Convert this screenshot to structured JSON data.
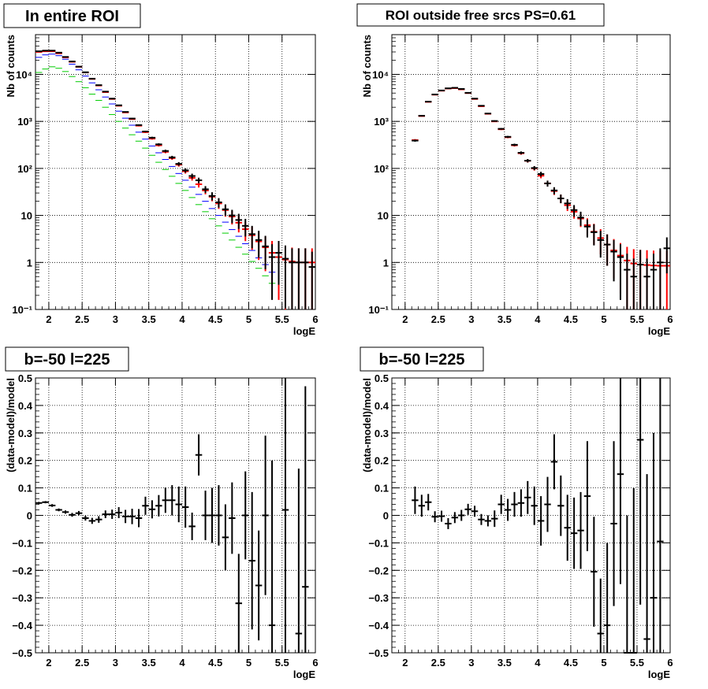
{
  "colors": {
    "data": "#000000",
    "total_model": "#ff0000",
    "model_blue": "#0000ff",
    "model_green": "#00cc00"
  },
  "chart_data": [
    {
      "type": "scatter",
      "title": "In entire ROI",
      "xlabel": "logE",
      "ylabel": "Nb of counts",
      "xlim": [
        1.8,
        6.0
      ],
      "ylim": [
        0.1,
        70000
      ],
      "yscale": "log",
      "grid": true,
      "x_ticks": [
        "2",
        "2.5",
        "3",
        "3.5",
        "4",
        "4.5",
        "5",
        "5.5",
        "6"
      ],
      "y_ticks": [
        "10⁻¹",
        "1",
        "10",
        "10²",
        "10³",
        "10⁴"
      ],
      "series": [
        {
          "color": "#00cc00",
          "x": [
            1.85,
            1.95,
            2.05,
            2.15,
            2.25,
            2.35,
            2.45,
            2.55,
            2.65,
            2.75,
            2.85,
            2.95,
            3.05,
            3.15,
            3.25,
            3.35,
            3.45,
            3.55,
            3.65,
            3.75,
            3.85,
            3.95,
            4.05,
            4.15,
            4.25,
            4.35,
            4.45,
            4.55,
            4.65,
            4.75,
            4.85,
            4.95,
            5.05,
            5.15,
            5.25,
            5.35
          ],
          "y": [
            11000,
            13000,
            14500,
            13500,
            11500,
            9000,
            7000,
            5200,
            3800,
            2800,
            2000,
            1400,
            1000,
            720,
            520,
            380,
            270,
            190,
            135,
            95,
            68,
            48,
            34,
            24,
            17,
            12,
            8.5,
            6,
            4.2,
            3,
            2.1,
            1.5,
            1.05,
            0.75,
            0.52,
            0.36
          ]
        },
        {
          "color": "#0000ff",
          "x": [
            1.85,
            1.95,
            2.05,
            2.15,
            2.25,
            2.35,
            2.45,
            2.55,
            2.65,
            2.75,
            2.85,
            2.95,
            3.05,
            3.15,
            3.25,
            3.35,
            3.45,
            3.55,
            3.65,
            3.75,
            3.85,
            3.95,
            4.05,
            4.15,
            4.25,
            4.35,
            4.45,
            4.55,
            4.65,
            4.75,
            4.85,
            4.95,
            5.05,
            5.15,
            5.25,
            5.35
          ],
          "y": [
            23000,
            26000,
            27000,
            25000,
            21000,
            16500,
            12500,
            9200,
            6600,
            4700,
            3300,
            2350,
            1650,
            1170,
            830,
            590,
            420,
            300,
            215,
            155,
            110,
            78,
            56,
            40,
            28,
            20,
            14,
            10,
            7.2,
            5,
            3.6,
            2.5,
            1.8,
            1.25,
            0.9,
            0.62
          ]
        },
        {
          "color": "#ff0000",
          "errors": true,
          "x": [
            1.85,
            1.95,
            2.05,
            2.15,
            2.25,
            2.35,
            2.45,
            2.55,
            2.65,
            2.75,
            2.85,
            2.95,
            3.05,
            3.15,
            3.25,
            3.35,
            3.45,
            3.55,
            3.65,
            3.75,
            3.85,
            3.95,
            4.05,
            4.15,
            4.25,
            4.35,
            4.45,
            4.55,
            4.65,
            4.75,
            4.85,
            4.95,
            5.05,
            5.15,
            5.25,
            5.35,
            5.45,
            5.55,
            5.65,
            5.75,
            5.85,
            5.95
          ],
          "y": [
            30000,
            31000,
            31000,
            28000,
            23000,
            18500,
            14500,
            11000,
            8000,
            5800,
            4200,
            3000,
            2150,
            1550,
            1120,
            810,
            590,
            430,
            310,
            225,
            165,
            120,
            87,
            63,
            46,
            34,
            25,
            18,
            13,
            9.5,
            7,
            5.1,
            3.8,
            2.8,
            2.1,
            1.6,
            1.3,
            1.15,
            1.05,
            1.0,
            1.0,
            1.0
          ]
        },
        {
          "color": "#000000",
          "errors": true,
          "x": [
            1.85,
            1.95,
            2.05,
            2.15,
            2.25,
            2.35,
            2.45,
            2.55,
            2.65,
            2.75,
            2.85,
            2.95,
            3.05,
            3.15,
            3.25,
            3.35,
            3.45,
            3.55,
            3.65,
            3.75,
            3.85,
            3.95,
            4.05,
            4.15,
            4.25,
            4.35,
            4.45,
            4.55,
            4.65,
            4.75,
            4.85,
            4.95,
            5.05,
            5.15,
            5.25,
            5.35,
            5.45,
            5.55,
            5.65,
            5.75,
            5.85,
            5.95
          ],
          "y": [
            31000,
            32000,
            32000,
            29000,
            23500,
            18800,
            14600,
            11100,
            8100,
            5900,
            4300,
            3050,
            2200,
            1590,
            1150,
            835,
            610,
            450,
            325,
            235,
            172,
            125,
            91,
            69,
            56,
            36,
            26,
            19,
            13.5,
            10,
            8,
            6,
            4,
            3,
            2.2,
            1.3,
            1.6,
            1.2,
            1.0,
            1.0,
            1.0,
            0.8
          ]
        }
      ]
    },
    {
      "type": "scatter",
      "title": "ROI outside free srcs PS=0.61",
      "xlabel": "logE",
      "ylabel": "Nb of counts",
      "xlim": [
        1.8,
        6.0
      ],
      "ylim": [
        0.1,
        70000
      ],
      "yscale": "log",
      "grid": true,
      "x_ticks": [
        "2",
        "2.5",
        "3",
        "3.5",
        "4",
        "4.5",
        "5",
        "5.5",
        "6"
      ],
      "y_ticks": [
        "10⁻¹",
        "1",
        "10",
        "10²",
        "10³",
        "10⁴"
      ],
      "series": [
        {
          "color": "#ff0000",
          "errors": true,
          "x": [
            2.15,
            2.25,
            2.35,
            2.45,
            2.55,
            2.65,
            2.75,
            2.85,
            2.95,
            3.05,
            3.15,
            3.25,
            3.35,
            3.45,
            3.55,
            3.65,
            3.75,
            3.85,
            3.95,
            4.05,
            4.15,
            4.25,
            4.35,
            4.45,
            4.55,
            4.65,
            4.75,
            4.85,
            4.95,
            5.05,
            5.15,
            5.25,
            5.35,
            5.45,
            5.55,
            5.65,
            5.75,
            5.85,
            5.95
          ],
          "y": [
            400,
            1300,
            2600,
            3700,
            4500,
            5000,
            5100,
            4800,
            4000,
            3000,
            2100,
            1450,
            1000,
            680,
            460,
            310,
            210,
            145,
            100,
            70,
            48,
            33,
            23,
            16.5,
            12,
            8.6,
            6.2,
            4.5,
            3.3,
            2.4,
            1.8,
            1.4,
            1.1,
            0.95,
            0.9,
            0.88,
            0.86,
            0.85,
            0.85
          ]
        },
        {
          "color": "#000000",
          "errors": true,
          "x": [
            2.15,
            2.25,
            2.35,
            2.45,
            2.55,
            2.65,
            2.75,
            2.85,
            2.95,
            3.05,
            3.15,
            3.25,
            3.35,
            3.45,
            3.55,
            3.65,
            3.75,
            3.85,
            3.95,
            4.05,
            4.15,
            4.25,
            4.35,
            4.45,
            4.55,
            4.65,
            4.75,
            4.85,
            4.95,
            5.05,
            5.15,
            5.25,
            5.35,
            5.45,
            5.55,
            5.65,
            5.75,
            5.85,
            5.95
          ],
          "y": [
            390,
            1320,
            2630,
            3740,
            4550,
            5050,
            5180,
            4900,
            4050,
            3050,
            2150,
            1470,
            1020,
            695,
            470,
            318,
            215,
            146,
            102,
            76,
            48,
            34,
            23,
            18,
            13,
            9,
            5.8,
            4.4,
            3,
            2.4,
            1.7,
            1.3,
            0.7,
            0.5,
            0.9,
            0.5,
            0.7,
            1.0,
            2.0
          ]
        }
      ]
    },
    {
      "type": "scatter",
      "title": "b=-50 l=225",
      "xlabel": "logE",
      "ylabel": "(data-model)/model",
      "xlim": [
        1.8,
        6.0
      ],
      "ylim": [
        -0.5,
        0.5
      ],
      "grid": true,
      "x_ticks": [
        "2",
        "2.5",
        "3",
        "3.5",
        "4",
        "4.5",
        "5",
        "5.5",
        "6"
      ],
      "y_ticks": [
        "−0.5",
        "−0.4",
        "−0.3",
        "−0.2",
        "−0.1",
        "0",
        "0.1",
        "0.2",
        "0.3",
        "0.4",
        "0.5"
      ],
      "series": [
        {
          "color": "#000000",
          "errors": true,
          "x": [
            1.85,
            1.95,
            2.05,
            2.15,
            2.25,
            2.35,
            2.45,
            2.55,
            2.65,
            2.75,
            2.85,
            2.95,
            3.05,
            3.15,
            3.25,
            3.35,
            3.45,
            3.55,
            3.65,
            3.75,
            3.85,
            3.95,
            4.05,
            4.15,
            4.25,
            4.35,
            4.45,
            4.55,
            4.65,
            4.75,
            4.85,
            4.95,
            5.05,
            5.15,
            5.25,
            5.35,
            5.55,
            5.75,
            5.85
          ],
          "y": [
            0.045,
            0.048,
            0.036,
            0.02,
            0.012,
            0.002,
            0.008,
            -0.01,
            -0.02,
            -0.015,
            0.004,
            0.004,
            0.01,
            -0.004,
            -0.004,
            -0.01,
            0.035,
            0.022,
            0.035,
            0.055,
            0.055,
            0.04,
            0.03,
            -0.04,
            0.22,
            0.0,
            0.0,
            0.0,
            -0.08,
            -0.01,
            -0.32,
            0.0,
            -0.165,
            -0.255,
            0.0,
            -0.4,
            0.02,
            -0.43,
            -0.26
          ],
          "err": [
            0.004,
            0.004,
            0.005,
            0.005,
            0.006,
            0.007,
            0.008,
            0.009,
            0.011,
            0.012,
            0.014,
            0.017,
            0.02,
            0.024,
            0.028,
            0.033,
            0.033,
            0.033,
            0.039,
            0.046,
            0.055,
            0.065,
            0.075,
            0.05,
            0.075,
            0.09,
            0.1,
            0.11,
            0.12,
            0.13,
            0.18,
            0.16,
            0.25,
            0.2,
            0.29,
            0.6,
            0.6,
            0.6,
            0.73
          ]
        }
      ]
    },
    {
      "type": "scatter",
      "title": "b=-50 l=225",
      "xlabel": "logE",
      "ylabel": "(data-model)/model",
      "xlim": [
        1.8,
        6.0
      ],
      "ylim": [
        -0.5,
        0.5
      ],
      "grid": true,
      "x_ticks": [
        "2",
        "2.5",
        "3",
        "3.5",
        "4",
        "4.5",
        "5",
        "5.5",
        "6"
      ],
      "y_ticks": [
        "−0.5",
        "−0.4",
        "−0.3",
        "−0.2",
        "−0.1",
        "0",
        "0.1",
        "0.2",
        "0.3",
        "0.4",
        "0.5"
      ],
      "series": [
        {
          "color": "#000000",
          "errors": true,
          "x": [
            2.15,
            2.25,
            2.35,
            2.45,
            2.55,
            2.65,
            2.75,
            2.85,
            2.95,
            3.05,
            3.15,
            3.25,
            3.35,
            3.45,
            3.55,
            3.65,
            3.75,
            3.85,
            3.95,
            4.05,
            4.15,
            4.25,
            4.35,
            4.45,
            4.55,
            4.65,
            4.75,
            4.85,
            4.95,
            5.05,
            5.15,
            5.25,
            5.35,
            5.45,
            5.55,
            5.65,
            5.75,
            5.85
          ],
          "y": [
            0.055,
            0.035,
            0.048,
            -0.005,
            -0.003,
            -0.03,
            -0.008,
            0.0,
            0.022,
            0.015,
            -0.015,
            -0.02,
            -0.012,
            0.04,
            0.02,
            0.04,
            0.045,
            0.065,
            0.035,
            -0.02,
            0.04,
            0.195,
            0.035,
            -0.045,
            -0.065,
            -0.055,
            0.07,
            -0.205,
            -0.43,
            -0.4,
            -0.03,
            0.15,
            -0.5,
            -0.5,
            0.275,
            -0.45,
            -0.3,
            -0.095
          ],
          "err": [
            0.05,
            0.04,
            0.03,
            0.02,
            0.02,
            0.02,
            0.02,
            0.02,
            0.02,
            0.02,
            0.02,
            0.02,
            0.03,
            0.035,
            0.04,
            0.045,
            0.05,
            0.06,
            0.07,
            0.09,
            0.1,
            0.1,
            0.11,
            0.12,
            0.13,
            0.14,
            0.2,
            0.2,
            0.2,
            0.3,
            0.3,
            0.4,
            0.5,
            0.6,
            0.6,
            0.6,
            0.6,
            0.6
          ]
        }
      ]
    }
  ]
}
